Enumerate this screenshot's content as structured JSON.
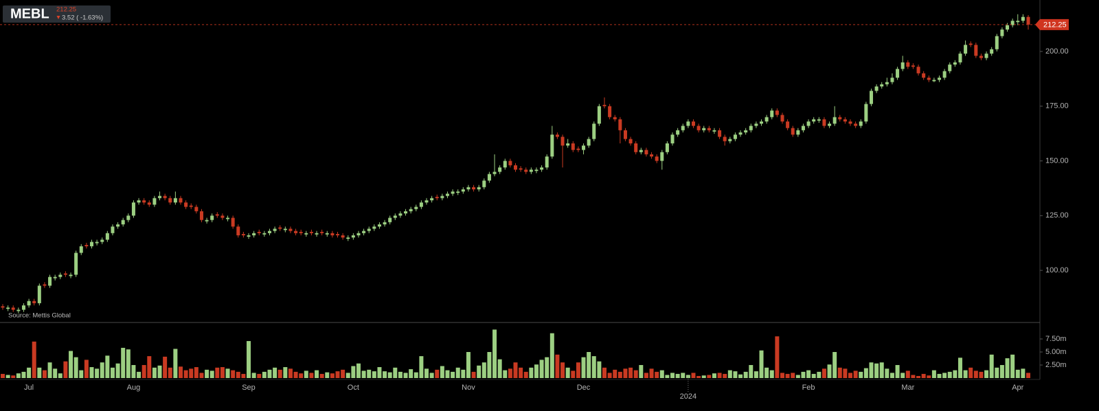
{
  "chart_data": {
    "type": "candlestick",
    "header": {
      "ticker": "MEBL",
      "change": "3.52 ( -1.63%)"
    },
    "source": "Source: Mettis Global",
    "up_color": "#9ccf82",
    "down_color": "#c93a22",
    "categories": [
      null,
      null,
      null,
      null,
      null,
      "Jul",
      null,
      null,
      null,
      null,
      null,
      null,
      null,
      null,
      null,
      null,
      null,
      null,
      null,
      null,
      null,
      null,
      null,
      null,
      null,
      "Aug",
      null,
      null,
      null,
      null,
      null,
      null,
      null,
      null,
      null,
      null,
      null,
      null,
      null,
      null,
      null,
      null,
      null,
      null,
      null,
      null,
      null,
      "Sep",
      null,
      null,
      null,
      null,
      null,
      null,
      null,
      null,
      null,
      null,
      null,
      null,
      null,
      null,
      null,
      null,
      null,
      null,
      null,
      "Oct",
      null,
      null,
      null,
      null,
      null,
      null,
      null,
      null,
      null,
      null,
      null,
      null,
      null,
      null,
      null,
      null,
      null,
      null,
      null,
      null,
      null,
      "Nov",
      null,
      null,
      null,
      null,
      null,
      null,
      null,
      null,
      null,
      null,
      null,
      null,
      null,
      null,
      null,
      null,
      null,
      null,
      null,
      null,
      null,
      "Dec",
      null,
      null,
      null,
      null,
      null,
      null,
      null,
      null,
      null,
      null,
      null,
      null,
      null,
      null,
      null,
      null,
      null,
      null,
      null,
      "2024",
      null,
      null,
      null,
      null,
      null,
      null,
      null,
      null,
      null,
      null,
      null,
      null,
      null,
      null,
      null,
      null,
      null,
      null,
      null,
      null,
      null,
      null,
      "Feb",
      null,
      null,
      null,
      null,
      null,
      null,
      null,
      null,
      null,
      null,
      null,
      null,
      null,
      null,
      null,
      null,
      null,
      null,
      "Mar",
      null,
      null,
      null,
      null,
      null,
      null,
      null,
      null,
      null,
      null,
      null,
      null,
      null,
      null,
      null,
      null,
      null,
      null,
      null,
      null,
      "Apr",
      null,
      null
    ],
    "open": [
      83.6,
      82.4,
      83,
      81.4,
      82,
      84,
      86,
      85,
      93.6,
      93,
      96.4,
      97,
      98.6,
      97.4,
      98,
      108,
      111.6,
      111,
      112.4,
      113,
      114,
      117,
      120,
      121,
      123,
      125,
      131,
      132,
      131,
      130,
      133,
      134,
      133,
      131,
      133,
      131,
      129.6,
      129,
      127,
      122.4,
      123,
      125.6,
      125,
      123.4,
      124,
      120,
      116.6,
      115.4,
      116,
      117.6,
      116.4,
      117,
      118,
      119.6,
      118.4,
      119,
      118,
      117.6,
      116.4,
      117.6,
      116.4,
      117.6,
      116.4,
      117,
      116.6,
      116,
      114.4,
      115,
      116,
      117,
      118,
      119,
      120,
      121,
      122,
      124,
      125,
      126,
      127,
      128,
      129,
      131,
      132,
      133.6,
      133,
      134,
      135,
      135.4,
      136,
      137,
      138,
      137,
      138,
      141,
      144,
      145,
      147,
      150,
      148,
      146.6,
      146,
      145,
      145.4,
      146,
      147,
      152,
      162,
      161,
      157,
      158,
      155.6,
      155,
      157,
      160,
      167,
      175.6,
      175,
      170,
      169,
      164,
      160,
      158,
      154,
      155,
      153,
      152,
      150,
      154,
      158,
      162,
      164,
      166,
      168,
      166,
      164,
      165,
      163.4,
      164,
      161,
      159,
      160,
      162,
      163,
      164,
      166,
      167,
      168,
      170,
      173,
      171,
      168,
      165,
      162,
      164,
      166,
      168,
      168.4,
      169,
      166,
      167,
      170,
      169,
      168,
      167,
      166,
      168,
      176,
      182,
      184,
      185,
      186,
      188,
      192,
      195,
      193.6,
      193,
      190,
      188,
      186.4,
      187,
      188,
      191,
      194,
      195,
      199,
      203.6,
      203,
      198,
      197,
      199,
      201,
      207,
      210,
      212,
      213.4,
      214,
      215.77
    ],
    "high": [
      84.6,
      84,
      84,
      83,
      85,
      87,
      87,
      94,
      94.6,
      98,
      98,
      99,
      99.6,
      99,
      109,
      112,
      112.6,
      114,
      114,
      115,
      118,
      121,
      122,
      124,
      126,
      132,
      133,
      133,
      132,
      134,
      136,
      135,
      134,
      136,
      134,
      132,
      130.6,
      130,
      128,
      124,
      126,
      126.6,
      126,
      125,
      125,
      121,
      117.6,
      117,
      118,
      118.6,
      118,
      119,
      120,
      120.6,
      120,
      120,
      119,
      118.6,
      118,
      118.6,
      118,
      118.6,
      118,
      118,
      117.6,
      117,
      116,
      117,
      118,
      119,
      120,
      121,
      122,
      123,
      125,
      126,
      127,
      128,
      129,
      130,
      132,
      133,
      134,
      134.6,
      135,
      136,
      137,
      137,
      138,
      139,
      139,
      139,
      142,
      145,
      153,
      148,
      151,
      151,
      149,
      147.6,
      147,
      147,
      147,
      148,
      153,
      166,
      163,
      162,
      160,
      159,
      156.6,
      158,
      161,
      168,
      176,
      179,
      176,
      171,
      170,
      165,
      161,
      159,
      156,
      156,
      154,
      153,
      155,
      159,
      163,
      165,
      167,
      169,
      169,
      167,
      166,
      166,
      165,
      165,
      162,
      161,
      163,
      164,
      165,
      167,
      168,
      169,
      171,
      174,
      174,
      172,
      169,
      166,
      165,
      167,
      169,
      170,
      170,
      170,
      168,
      175,
      171,
      170,
      169,
      168,
      169,
      177,
      183,
      185,
      186,
      188,
      190,
      193,
      198,
      196,
      194.6,
      194,
      191,
      189,
      188,
      189,
      192,
      195,
      196,
      200,
      205,
      204.6,
      204,
      199,
      200,
      202,
      208,
      211,
      213,
      215,
      217,
      217,
      216.6
    ],
    "low": [
      82,
      81.4,
      81,
      80.4,
      81,
      83,
      84,
      84,
      92,
      92,
      95.4,
      96,
      97,
      96.4,
      97,
      107,
      110,
      110,
      111.4,
      112,
      113,
      116,
      119,
      120,
      122,
      124,
      130,
      130,
      129,
      129,
      132,
      132,
      130,
      130,
      130,
      128,
      128,
      126,
      122,
      121.4,
      122,
      124,
      123,
      122.4,
      119,
      115,
      115,
      114.4,
      115,
      116,
      115.4,
      116,
      117,
      118,
      117.4,
      117,
      116,
      116,
      115.4,
      116,
      115.4,
      116,
      115.4,
      115,
      115,
      114,
      113.4,
      114,
      115,
      116,
      117,
      118,
      119,
      120,
      121,
      123,
      124,
      125,
      126,
      127,
      128,
      130,
      131,
      132,
      132,
      133,
      134,
      134.4,
      135,
      136,
      136,
      136,
      137,
      140,
      143,
      144,
      146,
      147,
      145,
      145,
      144,
      144,
      144.4,
      145,
      146,
      151,
      160,
      147,
      156,
      154,
      154,
      153,
      156,
      159,
      166,
      174,
      169,
      168,
      158,
      159,
      157,
      153,
      153,
      152,
      151,
      149,
      146,
      153,
      157,
      161,
      163,
      165,
      165,
      163,
      163,
      163,
      162.4,
      160,
      157,
      158,
      159,
      161,
      162,
      163,
      165,
      166,
      167,
      169,
      170,
      167,
      164,
      161,
      161,
      163,
      165,
      167,
      167.4,
      165,
      165,
      166,
      168,
      167,
      166,
      165,
      165,
      167,
      175,
      181,
      183,
      184,
      185,
      187,
      191,
      192,
      192,
      189,
      187,
      186,
      186,
      186,
      187,
      190,
      193,
      194,
      198,
      202,
      197,
      196,
      196,
      198,
      200,
      206,
      209,
      211,
      212,
      213,
      210
    ],
    "close": [
      83,
      83,
      82,
      82,
      84,
      86,
      85,
      93,
      93,
      97,
      97,
      98,
      98,
      98,
      108,
      111,
      111,
      113,
      113,
      114,
      117,
      120,
      121,
      123,
      125,
      131,
      132,
      131,
      130,
      133,
      134,
      133,
      131,
      133,
      131,
      129,
      129,
      127,
      123,
      123,
      125,
      125,
      124,
      124,
      120,
      116,
      116,
      116,
      117,
      117,
      117,
      118,
      119,
      119,
      119,
      118,
      117,
      117,
      117,
      117,
      117,
      117,
      117,
      116,
      116,
      115,
      115,
      116,
      117,
      118,
      119,
      120,
      121,
      122,
      124,
      125,
      126,
      127,
      128,
      129,
      131,
      132,
      133,
      133,
      134,
      135,
      136,
      136,
      137,
      138,
      137,
      138,
      141,
      144,
      145,
      147,
      150,
      148,
      146,
      146,
      145,
      146,
      146,
      147,
      152,
      162,
      161,
      157,
      158,
      155,
      155,
      157,
      160,
      167,
      175,
      175,
      170,
      169,
      164,
      160,
      158,
      154,
      155,
      153,
      152,
      150,
      154,
      158,
      162,
      164,
      166,
      168,
      166,
      164,
      165,
      164,
      164,
      161,
      159,
      160,
      162,
      163,
      164,
      166,
      167,
      168,
      170,
      173,
      171,
      168,
      165,
      162,
      164,
      166,
      168,
      169,
      169,
      166,
      167,
      170,
      169,
      168,
      167,
      166,
      168,
      176,
      182,
      184,
      185,
      186,
      188,
      192,
      195,
      193,
      193,
      190,
      188,
      187,
      187,
      188,
      191,
      194,
      195,
      199,
      203,
      203,
      198,
      197,
      199,
      201,
      207,
      210,
      212,
      214,
      214,
      215.77,
      212.25
    ],
    "volume": [
      0.8,
      0.6,
      0.5,
      0.9,
      1.2,
      2.0,
      7.0,
      2.0,
      1.5,
      3.0,
      1.8,
      0.9,
      3.2,
      5.2,
      4.0,
      1.5,
      3.5,
      2.1,
      1.8,
      3.0,
      4.3,
      2.0,
      2.8,
      5.8,
      5.5,
      2.5,
      1.2,
      2.5,
      4.2,
      2.0,
      2.4,
      4.1,
      2.0,
      5.6,
      2.2,
      1.5,
      1.8,
      2.1,
      1.0,
      1.6,
      1.4,
      2.0,
      2.1,
      1.8,
      1.5,
      1.2,
      0.8,
      7.1,
      1.0,
      0.8,
      1.2,
      1.6,
      2.0,
      1.6,
      2.1,
      1.8,
      1.2,
      0.9,
      1.4,
      1.0,
      1.5,
      0.8,
      1.1,
      0.9,
      1.3,
      1.6,
      1.0,
      2.3,
      2.8,
      1.4,
      1.6,
      1.3,
      2.1,
      1.3,
      1.1,
      2.0,
      1.2,
      1.0,
      1.7,
      1.1,
      4.2,
      1.8,
      1.0,
      1.6,
      2.3,
      1.5,
      1.2,
      2.0,
      1.6,
      5.0,
      1.2,
      2.4,
      3.0,
      5.0,
      9.3,
      3.6,
      1.5,
      1.8,
      3.0,
      2.0,
      1.2,
      2.0,
      2.6,
      3.5,
      4.0,
      8.6,
      4.5,
      3.0,
      2.0,
      1.4,
      3.0,
      4.0,
      5.0,
      4.2,
      3.2,
      2.0,
      1.0,
      1.6,
      1.2,
      1.8,
      2.0,
      1.5,
      2.5,
      1.0,
      1.8,
      1.2,
      1.5,
      0.6,
      1.0,
      0.8,
      1.0,
      0.6,
      1.0,
      0.4,
      0.5,
      0.6,
      0.9,
      1.0,
      0.8,
      1.5,
      1.3,
      0.7,
      1.2,
      2.5,
      1.3,
      5.3,
      2.0,
      1.5,
      8.0,
      1.0,
      0.8,
      1.0,
      0.6,
      1.2,
      1.5,
      0.8,
      1.2,
      1.8,
      2.6,
      5.0,
      2.0,
      1.8,
      1.0,
      1.4,
      1.2,
      1.9,
      3.0,
      2.8,
      3.0,
      1.8,
      1.0,
      2.5,
      1.0,
      1.4,
      0.6,
      0.4,
      0.8,
      0.5,
      1.5,
      0.8,
      1.0,
      1.2,
      1.5,
      3.9,
      1.5,
      2.0,
      1.4,
      1.2,
      1.5,
      4.5,
      2.0,
      2.5,
      3.8,
      4.5,
      1.6,
      1.8,
      1.0
    ],
    "ylim": [
      76.2,
      223.5
    ],
    "yticks": [
      {
        "value": 100,
        "label": "100.00"
      },
      {
        "value": 125,
        "label": "125.00"
      },
      {
        "value": 150,
        "label": "150.00"
      },
      {
        "value": 175,
        "label": "175.00"
      },
      {
        "value": 200,
        "label": "200.00"
      }
    ],
    "volume_ylim": [
      0,
      10.66
    ],
    "volume_yticks": [
      {
        "value": 2.5,
        "label": "2.50m"
      },
      {
        "value": 5,
        "label": "5.00m"
      },
      {
        "value": 7.5,
        "label": "7.50m"
      }
    ]
  }
}
